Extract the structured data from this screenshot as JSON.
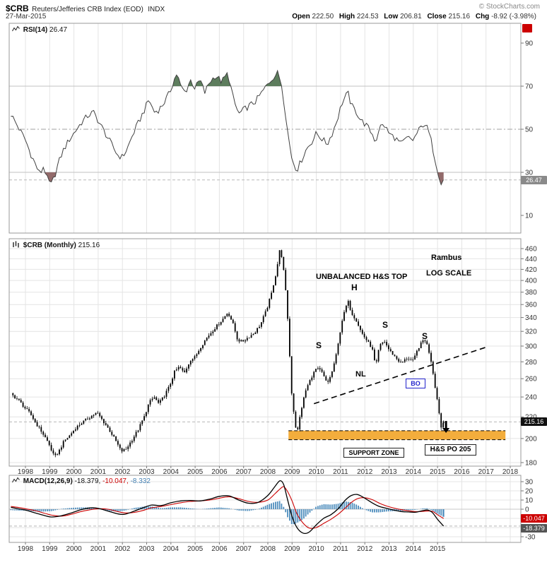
{
  "header": {
    "symbol": "$CRB",
    "name": "Reuters/Jefferies CRB Index (EOD)",
    "exchange": "INDX",
    "copyright": "© StockCharts.com",
    "date": "27-Mar-2015",
    "quote": {
      "open_label": "Open",
      "open": "222.50",
      "high_label": "High",
      "high": "224.53",
      "low_label": "Low",
      "low": "206.81",
      "close_label": "Close",
      "close": "215.16",
      "chg_label": "Chg",
      "chg": "-8.92 (-3.98%)"
    }
  },
  "panels": {
    "rsi": {
      "label": "RSI(14)",
      "value": "26.47",
      "badge": "26.47"
    },
    "price": {
      "label": "$CRB (Monthly)",
      "value": "215.16",
      "badge": "215.16"
    },
    "macd": {
      "label": "MACD(12,26,9)",
      "value_macd": "-18.379,",
      "value_signal": "-10.047,",
      "value_hist": "-8.332",
      "badge_signal": "-10.047",
      "badge_macd": "-18.379"
    }
  },
  "annotations": {
    "hs_top": "UNBALANCED H&S TOP",
    "rambus": "Rambus",
    "log_scale": "LOG SCALE",
    "head": "H",
    "shoulder": "S",
    "neckline": "NL",
    "breakout": "BO",
    "support_zone": "SUPPORT ZONE",
    "price_objective": "H&S PO 205"
  },
  "colors": {
    "rsi_line": "#404040",
    "overbought_fill": "#5d7d5d",
    "oversold_fill": "#926a6a",
    "price_bar": "#000000",
    "support_zone": "#f2a62b",
    "macd_line": "#000000",
    "signal_line": "#cc0000",
    "histogram": "#4f8ebd",
    "badge_rsi": "#8a8a8a",
    "badge_price": "#111111",
    "badge_signal": "#cc0000",
    "badge_macd": "#555555",
    "chg_negative": "#cc0000",
    "annotation_blue": "#2222cc"
  },
  "chart_data": [
    {
      "type": "line",
      "name": "RSI(14)",
      "last": 26.47,
      "ylim": [
        3,
        97
      ],
      "yticks": [
        90,
        70,
        50,
        30,
        10
      ],
      "bands": {
        "overbought": 70,
        "midline": 50,
        "oversold": 30
      },
      "points": [
        [
          1997.4,
          57
        ],
        [
          1997.7,
          51
        ],
        [
          1998.0,
          45
        ],
        [
          1998.2,
          39
        ],
        [
          1998.4,
          34
        ],
        [
          1998.6,
          29
        ],
        [
          1998.75,
          33
        ],
        [
          1998.9,
          27
        ],
        [
          1999.05,
          24
        ],
        [
          1999.2,
          28
        ],
        [
          1999.35,
          34
        ],
        [
          1999.55,
          40
        ],
        [
          1999.8,
          45
        ],
        [
          2000.05,
          49
        ],
        [
          2000.3,
          53
        ],
        [
          2000.55,
          56
        ],
        [
          2000.8,
          58
        ],
        [
          2001.05,
          53
        ],
        [
          2001.3,
          48
        ],
        [
          2001.55,
          43
        ],
        [
          2001.8,
          38
        ],
        [
          2002.0,
          37
        ],
        [
          2002.2,
          41
        ],
        [
          2002.45,
          48
        ],
        [
          2002.7,
          54
        ],
        [
          2002.95,
          60
        ],
        [
          2003.1,
          64
        ],
        [
          2003.3,
          58
        ],
        [
          2003.5,
          59
        ],
        [
          2003.7,
          62
        ],
        [
          2003.95,
          67
        ],
        [
          2004.1,
          72
        ],
        [
          2004.25,
          76
        ],
        [
          2004.4,
          70
        ],
        [
          2004.6,
          67
        ],
        [
          2004.8,
          73
        ],
        [
          2005.0,
          69
        ],
        [
          2005.2,
          73
        ],
        [
          2005.4,
          67
        ],
        [
          2005.6,
          72
        ],
        [
          2005.85,
          75
        ],
        [
          2006.1,
          72
        ],
        [
          2006.35,
          76
        ],
        [
          2006.6,
          63
        ],
        [
          2006.8,
          57
        ],
        [
          2007.0,
          59
        ],
        [
          2007.25,
          61
        ],
        [
          2007.5,
          63
        ],
        [
          2007.75,
          67
        ],
        [
          2008.0,
          71
        ],
        [
          2008.2,
          74
        ],
        [
          2008.4,
          76
        ],
        [
          2008.55,
          72
        ],
        [
          2008.7,
          60
        ],
        [
          2008.85,
          46
        ],
        [
          2009.0,
          36
        ],
        [
          2009.2,
          31
        ],
        [
          2009.4,
          36
        ],
        [
          2009.6,
          41
        ],
        [
          2009.8,
          44
        ],
        [
          2010.0,
          48
        ],
        [
          2010.2,
          46
        ],
        [
          2010.45,
          43
        ],
        [
          2010.65,
          48
        ],
        [
          2010.85,
          54
        ],
        [
          2011.05,
          62
        ],
        [
          2011.3,
          67
        ],
        [
          2011.45,
          61
        ],
        [
          2011.65,
          58
        ],
        [
          2011.85,
          54
        ],
        [
          2012.05,
          52
        ],
        [
          2012.3,
          48
        ],
        [
          2012.45,
          44
        ],
        [
          2012.6,
          51
        ],
        [
          2012.8,
          52
        ],
        [
          2013.0,
          48
        ],
        [
          2013.25,
          46
        ],
        [
          2013.5,
          43
        ],
        [
          2013.75,
          46
        ],
        [
          2014.0,
          45
        ],
        [
          2014.2,
          49
        ],
        [
          2014.45,
          53
        ],
        [
          2014.6,
          50
        ],
        [
          2014.75,
          44
        ],
        [
          2014.9,
          36
        ],
        [
          2015.05,
          29
        ],
        [
          2015.15,
          25
        ],
        [
          2015.25,
          26.47
        ]
      ]
    },
    {
      "type": "bar",
      "name": "$CRB Monthly",
      "last_close": 215.16,
      "scale": "log",
      "ylim": [
        178,
        470
      ],
      "yticks": [
        460,
        440,
        420,
        400,
        380,
        360,
        340,
        320,
        300,
        280,
        260,
        240,
        220,
        200,
        180
      ],
      "x_years": [
        1998,
        1999,
        2000,
        2001,
        2002,
        2003,
        2004,
        2005,
        2006,
        2007,
        2008,
        2009,
        2010,
        2011,
        2012,
        2013,
        2014,
        2015,
        2016,
        2017,
        2018
      ],
      "points": [
        [
          1997.4,
          243
        ],
        [
          1997.7,
          237
        ],
        [
          1998.0,
          228
        ],
        [
          1998.2,
          223
        ],
        [
          1998.45,
          213
        ],
        [
          1998.7,
          205
        ],
        [
          1998.95,
          196
        ],
        [
          1999.2,
          184
        ],
        [
          1999.4,
          190
        ],
        [
          1999.6,
          198
        ],
        [
          1999.8,
          202
        ],
        [
          2000.05,
          209
        ],
        [
          2000.3,
          214
        ],
        [
          2000.55,
          218
        ],
        [
          2000.8,
          222
        ],
        [
          2000.95,
          224
        ],
        [
          2001.2,
          216
        ],
        [
          2001.45,
          208
        ],
        [
          2001.7,
          199
        ],
        [
          2001.95,
          189
        ],
        [
          2002.15,
          191
        ],
        [
          2002.4,
          199
        ],
        [
          2002.65,
          208
        ],
        [
          2002.9,
          220
        ],
        [
          2003.1,
          234
        ],
        [
          2003.3,
          240
        ],
        [
          2003.5,
          233
        ],
        [
          2003.7,
          240
        ],
        [
          2003.95,
          252
        ],
        [
          2004.15,
          268
        ],
        [
          2004.35,
          274
        ],
        [
          2004.55,
          266
        ],
        [
          2004.8,
          282
        ],
        [
          2005.0,
          286
        ],
        [
          2005.25,
          300
        ],
        [
          2005.5,
          312
        ],
        [
          2005.75,
          322
        ],
        [
          2005.95,
          330
        ],
        [
          2006.15,
          338
        ],
        [
          2006.35,
          348
        ],
        [
          2006.55,
          332
        ],
        [
          2006.75,
          308
        ],
        [
          2006.95,
          306
        ],
        [
          2007.2,
          312
        ],
        [
          2007.45,
          318
        ],
        [
          2007.7,
          330
        ],
        [
          2007.95,
          352
        ],
        [
          2008.15,
          378
        ],
        [
          2008.35,
          415
        ],
        [
          2008.5,
          460
        ],
        [
          2008.6,
          438
        ],
        [
          2008.72,
          388
        ],
        [
          2008.85,
          322
        ],
        [
          2008.95,
          252
        ],
        [
          2009.1,
          218
        ],
        [
          2009.2,
          203
        ],
        [
          2009.35,
          224
        ],
        [
          2009.55,
          246
        ],
        [
          2009.8,
          262
        ],
        [
          2010.0,
          272
        ],
        [
          2010.2,
          269
        ],
        [
          2010.45,
          254
        ],
        [
          2010.65,
          268
        ],
        [
          2010.85,
          292
        ],
        [
          2011.05,
          334
        ],
        [
          2011.3,
          366
        ],
        [
          2011.45,
          347
        ],
        [
          2011.65,
          336
        ],
        [
          2011.85,
          319
        ],
        [
          2012.05,
          309
        ],
        [
          2012.3,
          297
        ],
        [
          2012.45,
          273
        ],
        [
          2012.6,
          300
        ],
        [
          2012.8,
          307
        ],
        [
          2013.0,
          295
        ],
        [
          2013.25,
          286
        ],
        [
          2013.5,
          278
        ],
        [
          2013.75,
          285
        ],
        [
          2014.0,
          281
        ],
        [
          2014.2,
          297
        ],
        [
          2014.45,
          310
        ],
        [
          2014.6,
          299
        ],
        [
          2014.75,
          279
        ],
        [
          2014.9,
          251
        ],
        [
          2015.05,
          227
        ],
        [
          2015.15,
          210
        ],
        [
          2015.25,
          215.16
        ]
      ],
      "overlays": {
        "neckline": {
          "from": [
            2009.9,
            233
          ],
          "to": [
            2017.05,
            299
          ],
          "style": "dashed"
        },
        "support_zone": {
          "x_from": 2008.85,
          "x_to": 2017.8,
          "price_from": 199,
          "price_to": 207
        },
        "breakdown_arrow": {
          "x": 2015.35,
          "price_top": 216,
          "price_tip": 205
        }
      }
    },
    {
      "type": "macd",
      "name": "MACD(12,26,9)",
      "last": {
        "macd": -18.379,
        "signal": -10.047,
        "hist": -8.332
      },
      "ylim": [
        -33,
        33
      ],
      "yticks": [
        30,
        20,
        10,
        0,
        -10,
        -20,
        -30
      ],
      "x_years": [
        1998,
        1999,
        2000,
        2001,
        2002,
        2003,
        2004,
        2005,
        2006,
        2007,
        2008,
        2009,
        2010,
        2011,
        2012,
        2013,
        2014,
        2015
      ],
      "macd_points": [
        [
          1997.4,
          2
        ],
        [
          1997.7,
          0.5
        ],
        [
          1998.0,
          -1
        ],
        [
          1998.4,
          -4
        ],
        [
          1998.8,
          -7
        ],
        [
          1999.1,
          -8.5
        ],
        [
          1999.5,
          -7
        ],
        [
          1999.9,
          -4
        ],
        [
          2000.3,
          -0.5
        ],
        [
          2000.7,
          1.5
        ],
        [
          2001.0,
          1
        ],
        [
          2001.4,
          -2
        ],
        [
          2001.8,
          -5
        ],
        [
          2002.1,
          -5.5
        ],
        [
          2002.5,
          -2
        ],
        [
          2002.9,
          2
        ],
        [
          2003.2,
          4.5
        ],
        [
          2003.6,
          4
        ],
        [
          2004.0,
          7
        ],
        [
          2004.4,
          9
        ],
        [
          2004.8,
          9.5
        ],
        [
          2005.2,
          9
        ],
        [
          2005.6,
          11
        ],
        [
          2006.0,
          14
        ],
        [
          2006.4,
          14.5
        ],
        [
          2006.8,
          10
        ],
        [
          2007.2,
          6.5
        ],
        [
          2007.6,
          7.5
        ],
        [
          2008.0,
          15
        ],
        [
          2008.3,
          25
        ],
        [
          2008.5,
          31
        ],
        [
          2008.65,
          27
        ],
        [
          2008.8,
          12
        ],
        [
          2009.0,
          -8
        ],
        [
          2009.2,
          -20
        ],
        [
          2009.45,
          -26
        ],
        [
          2009.7,
          -25
        ],
        [
          2010.0,
          -17
        ],
        [
          2010.3,
          -10
        ],
        [
          2010.6,
          -6
        ],
        [
          2010.9,
          0.5
        ],
        [
          2011.2,
          10
        ],
        [
          2011.45,
          15
        ],
        [
          2011.7,
          16
        ],
        [
          2012.0,
          12
        ],
        [
          2012.3,
          7
        ],
        [
          2012.6,
          3
        ],
        [
          2012.9,
          1
        ],
        [
          2013.2,
          -1
        ],
        [
          2013.5,
          -2.5
        ],
        [
          2013.8,
          -3
        ],
        [
          2014.1,
          -3.2
        ],
        [
          2014.4,
          -1.5
        ],
        [
          2014.6,
          -1
        ],
        [
          2014.8,
          -4
        ],
        [
          2015.0,
          -11
        ],
        [
          2015.25,
          -18.379
        ]
      ],
      "signal_points": [
        [
          1997.4,
          3
        ],
        [
          1997.7,
          2
        ],
        [
          1998.0,
          0.5
        ],
        [
          1998.4,
          -1.5
        ],
        [
          1998.8,
          -4.5
        ],
        [
          1999.1,
          -6.5
        ],
        [
          1999.5,
          -7.5
        ],
        [
          1999.9,
          -5.5
        ],
        [
          2000.3,
          -2.5
        ],
        [
          2000.7,
          -0.5
        ],
        [
          2001.0,
          0.5
        ],
        [
          2001.4,
          0
        ],
        [
          2001.8,
          -2.5
        ],
        [
          2002.1,
          -4
        ],
        [
          2002.5,
          -3.5
        ],
        [
          2002.9,
          -1
        ],
        [
          2003.2,
          1.5
        ],
        [
          2003.6,
          3
        ],
        [
          2004.0,
          5
        ],
        [
          2004.4,
          7
        ],
        [
          2004.8,
          8.5
        ],
        [
          2005.2,
          9
        ],
        [
          2005.6,
          10
        ],
        [
          2006.0,
          12
        ],
        [
          2006.4,
          13.5
        ],
        [
          2006.8,
          11.5
        ],
        [
          2007.2,
          8.5
        ],
        [
          2007.6,
          7.5
        ],
        [
          2008.0,
          10
        ],
        [
          2008.3,
          17
        ],
        [
          2008.5,
          22
        ],
        [
          2008.65,
          24.5
        ],
        [
          2008.8,
          20
        ],
        [
          2009.0,
          9
        ],
        [
          2009.2,
          -5
        ],
        [
          2009.45,
          -15
        ],
        [
          2009.7,
          -20.5
        ],
        [
          2010.0,
          -20
        ],
        [
          2010.3,
          -15.5
        ],
        [
          2010.6,
          -11
        ],
        [
          2010.9,
          -5.5
        ],
        [
          2011.2,
          1.5
        ],
        [
          2011.45,
          7.5
        ],
        [
          2011.7,
          11.5
        ],
        [
          2012.0,
          12.5
        ],
        [
          2012.3,
          10.5
        ],
        [
          2012.6,
          6.5
        ],
        [
          2012.9,
          3.5
        ],
        [
          2013.2,
          1.2
        ],
        [
          2013.5,
          -0.5
        ],
        [
          2013.8,
          -1.8
        ],
        [
          2014.1,
          -2.6
        ],
        [
          2014.4,
          -2.4
        ],
        [
          2014.6,
          -2
        ],
        [
          2014.8,
          -2.4
        ],
        [
          2015.0,
          -6
        ],
        [
          2015.25,
          -10.047
        ]
      ]
    }
  ]
}
